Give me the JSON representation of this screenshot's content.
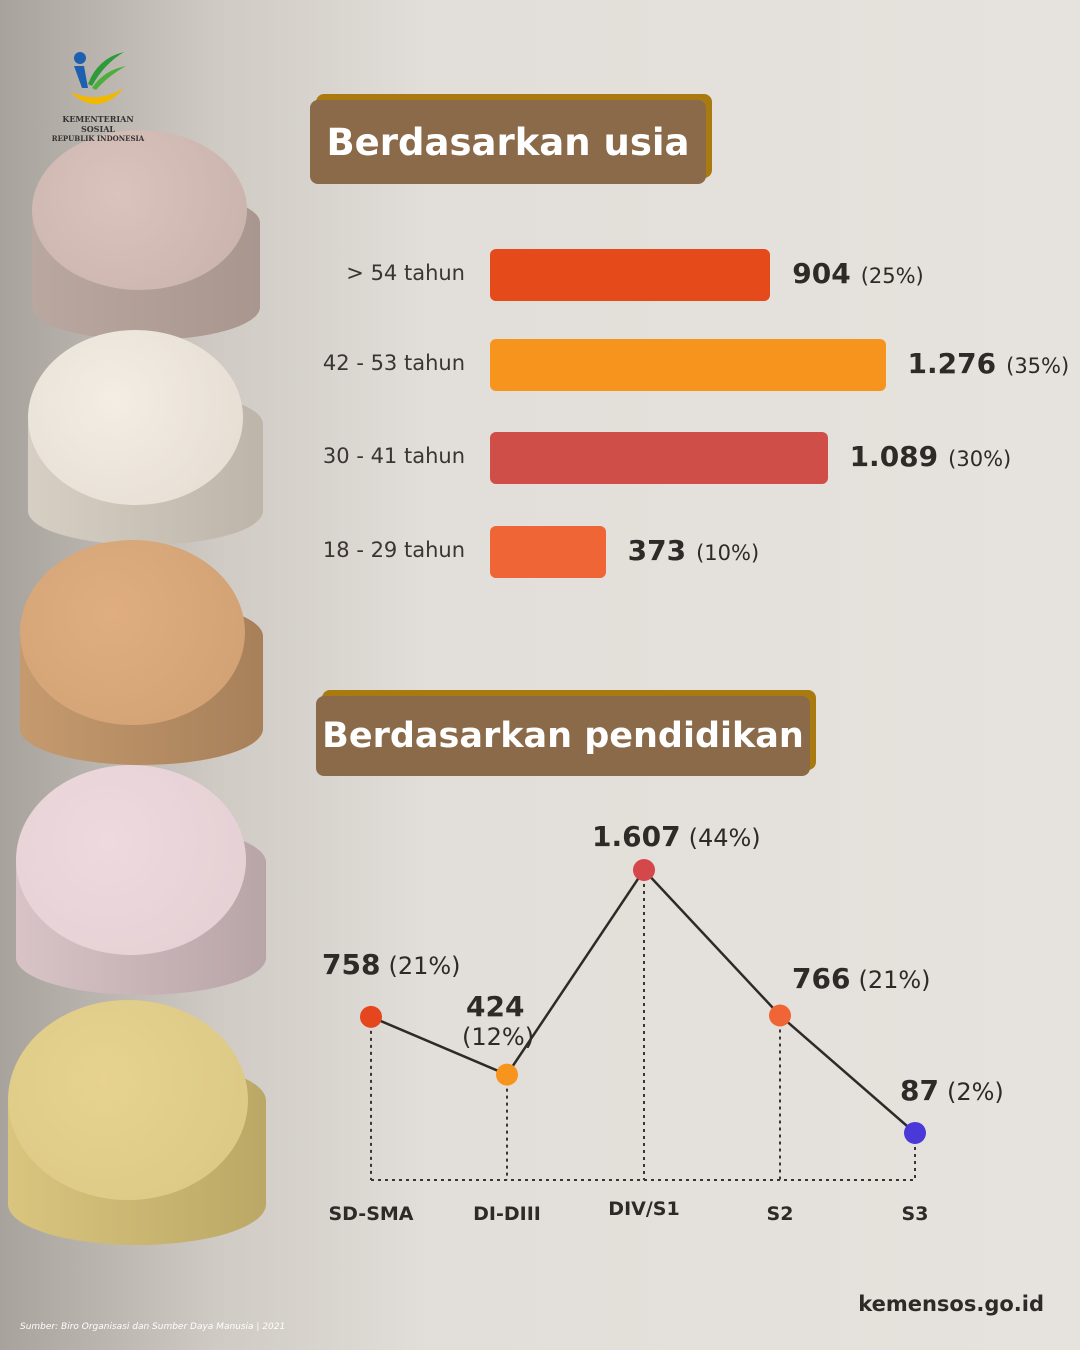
{
  "logo": {
    "line1": "KEMENTERIAN SOSIAL",
    "line2": "REPUBLIK INDONESIA"
  },
  "section_age": {
    "title": "Berdasarkan usia"
  },
  "section_edu": {
    "title": "Berdasarkan pendidikan"
  },
  "chart_data": [
    {
      "type": "bar",
      "orientation": "horizontal",
      "categories": [
        "> 54 tahun",
        "42 - 53 tahun",
        "30 - 41 tahun",
        "18 - 29 tahun"
      ],
      "values": [
        904,
        1276,
        1089,
        373
      ],
      "value_labels": [
        "904",
        "1.276",
        "1.089",
        "373"
      ],
      "percent_labels": [
        "(25%)",
        "(35%)",
        "(30%)",
        "(10%)"
      ],
      "colors": [
        "#e54a1a",
        "#f7941d",
        "#cf4f48",
        "#f06535"
      ]
    },
    {
      "type": "line",
      "categories": [
        "SD-SMA",
        "DI-DIII",
        "DIV/S1",
        "S2",
        "S3"
      ],
      "values": [
        758,
        424,
        1607,
        766,
        87
      ],
      "value_labels": [
        "758",
        "424",
        "1.607",
        "766",
        "87"
      ],
      "percent_labels": [
        "(21%)",
        "(12%)",
        "(44%)",
        "(21%)",
        "(2%)"
      ],
      "colors": [
        "#e5461d",
        "#f7941d",
        "#d4474a",
        "#f06535",
        "#4a38d8"
      ]
    }
  ],
  "footer": {
    "source": "Sumber: Biro Organisasi dan Sumber Daya Manusia | 2021",
    "site": "kemensos.go.id"
  }
}
